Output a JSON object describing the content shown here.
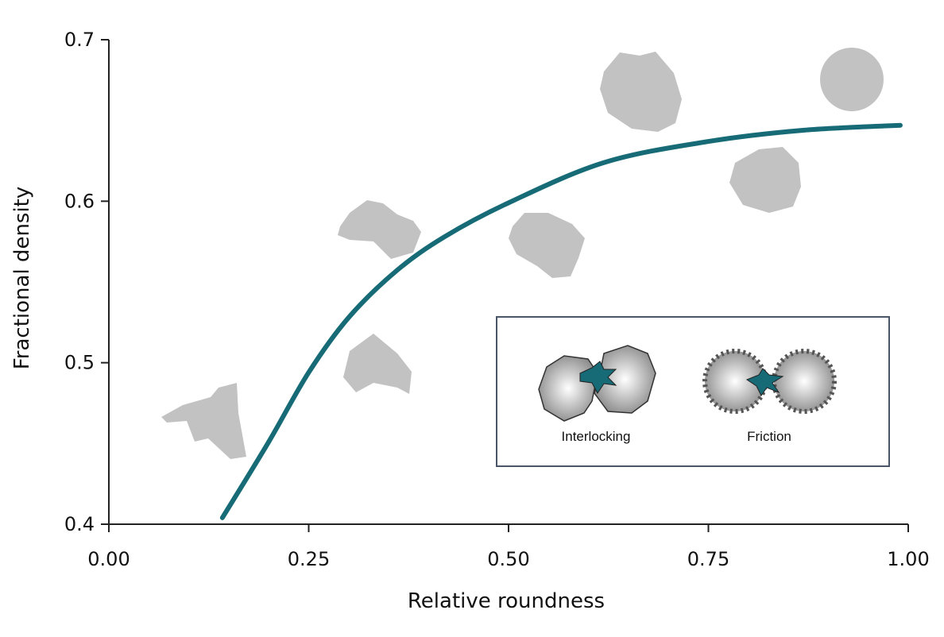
{
  "chart_data": {
    "type": "line",
    "x_label": "Relative roundness",
    "y_label": "Fractional density",
    "series": [
      {
        "name": null,
        "color": "#176b77",
        "x": [
          0.142,
          0.2,
          0.25,
          0.3,
          0.36,
          0.42,
          0.5,
          0.62,
          0.75,
          0.87,
          0.99
        ],
        "values": [
          0.404,
          0.451,
          0.494,
          0.528,
          0.557,
          0.578,
          0.599,
          0.624,
          0.637,
          0.644,
          0.647
        ]
      }
    ],
    "xlim": [
      0,
      1
    ],
    "ylim": [
      0.4,
      0.7
    ],
    "xticks": [
      {
        "value": 0,
        "label": "0.00"
      },
      {
        "value": 0.25,
        "label": "0.25"
      },
      {
        "value": 0.5,
        "label": "0.50"
      },
      {
        "value": 0.75,
        "label": "0.75"
      },
      {
        "value": 1,
        "label": "1.00"
      }
    ],
    "yticks": [
      0.4,
      0.5,
      0.6,
      0.7
    ],
    "annotations": [
      "Interlocking",
      "Friction"
    ]
  }
}
